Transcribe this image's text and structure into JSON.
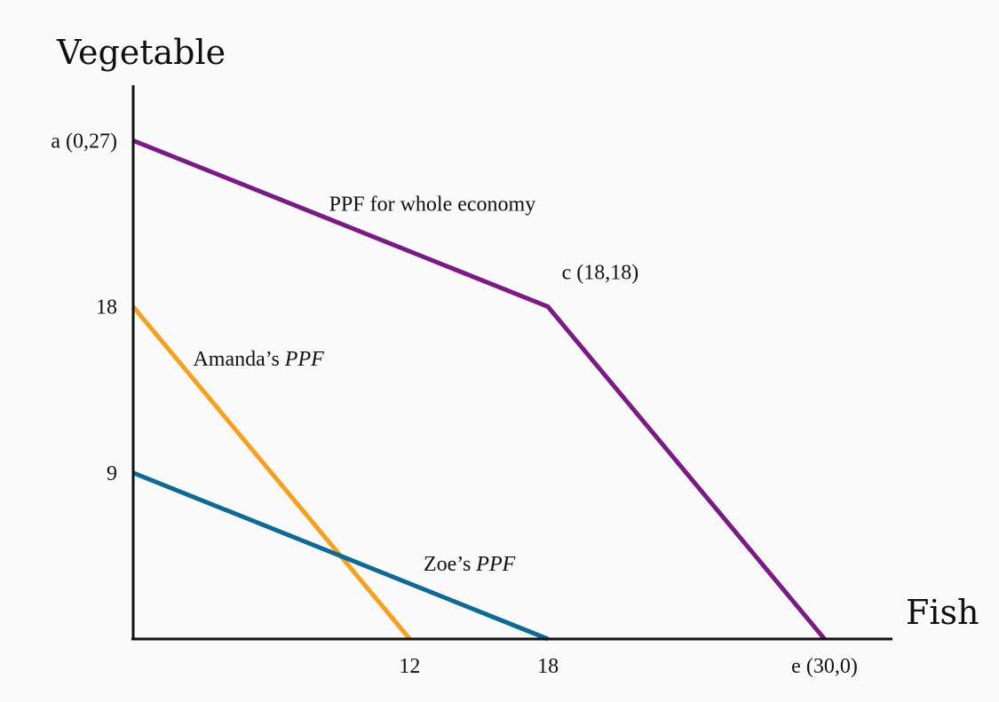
{
  "chart_data": {
    "type": "line",
    "xlabel": "Fish",
    "ylabel": "Vegetable",
    "xlim": [
      0,
      37
    ],
    "ylim": [
      0,
      30.5
    ],
    "x_ticks": [
      {
        "value": 12,
        "label": "12"
      },
      {
        "value": 18,
        "label": "18"
      },
      {
        "value": 30,
        "label": "e (30,0)"
      }
    ],
    "y_ticks": [
      {
        "value": 27,
        "label": "a (0,27)"
      },
      {
        "value": 18,
        "label": "18"
      },
      {
        "value": 9,
        "label": "9"
      }
    ],
    "series": [
      {
        "key": "economy",
        "color": "#7a1a85",
        "points": [
          [
            0,
            27
          ],
          [
            18,
            18
          ],
          [
            30,
            0
          ]
        ]
      },
      {
        "key": "amanda",
        "color": "#f5a021",
        "points": [
          [
            0,
            18
          ],
          [
            12,
            0
          ]
        ]
      },
      {
        "key": "zoe",
        "color": "#0e6a94",
        "points": [
          [
            0,
            9
          ],
          [
            18,
            0
          ]
        ]
      }
    ],
    "annotations": [
      {
        "key": "economy",
        "text": "PPF for whole economy",
        "italic": "",
        "x": 8.5,
        "y": 23.2
      },
      {
        "key": "c-point",
        "text": "c (18,18)",
        "italic": "",
        "x": 18.6,
        "y": 19.5
      },
      {
        "key": "amanda",
        "text": "Amanda’s ",
        "italic": "PPF",
        "x": 2.6,
        "y": 14.8
      },
      {
        "key": "zoe",
        "text": "Zoe’s ",
        "italic": "PPF",
        "x": 12.6,
        "y": 3.7
      }
    ],
    "grid": false,
    "legend": "none"
  }
}
